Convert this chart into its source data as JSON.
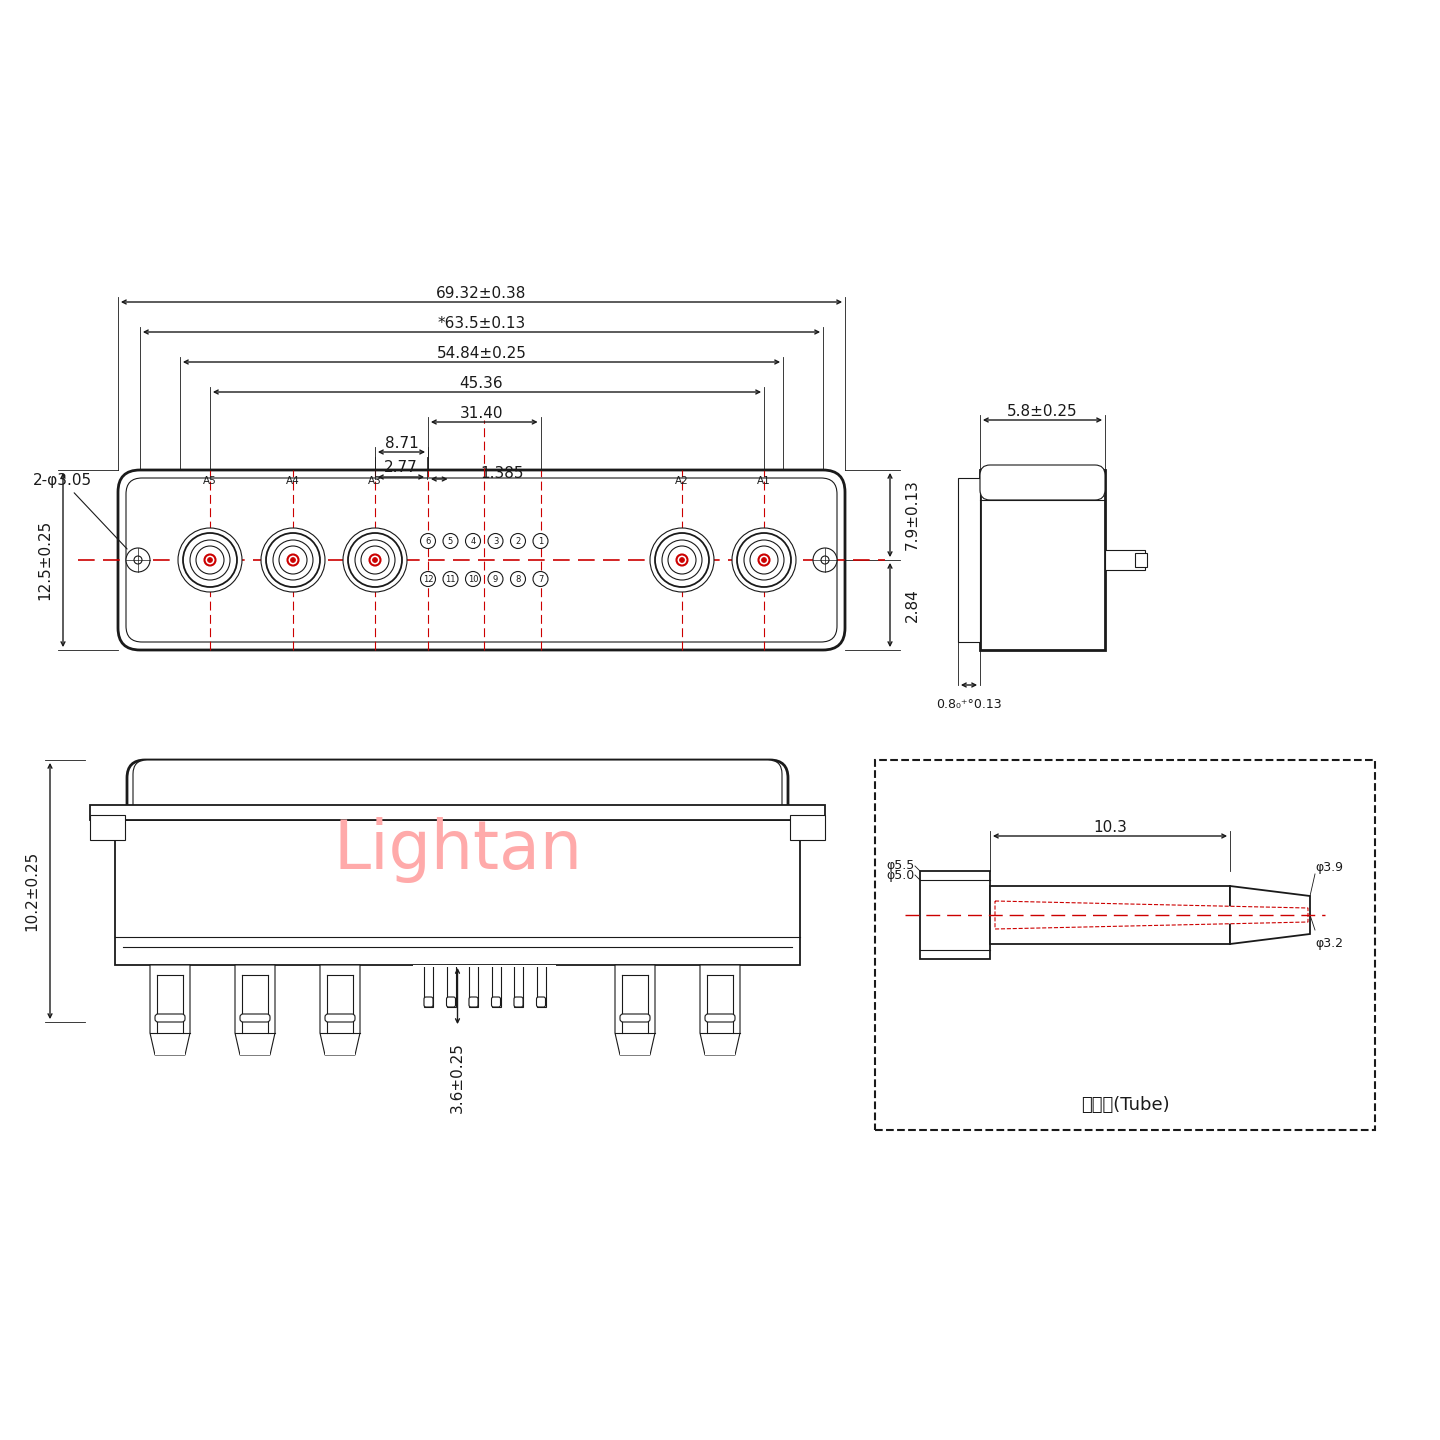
{
  "bg_color": "#ffffff",
  "lc": "#1a1a1a",
  "rc": "#cc0000",
  "wm_color": "#ffaaaa",
  "watermark": "Lightan",
  "dims": {
    "d6932": "69.32±0.38",
    "d635": "*63.5±0.13",
    "d5484": "54.84±0.25",
    "d4536": "45.36",
    "d3140": "31.40",
    "d871": "8.71",
    "d277": "2.77",
    "d1385": "1.385",
    "d79": "7.9±0.13",
    "d284": "2.84",
    "d125": "12.5±0.25",
    "phi305": "2-φ3.05",
    "d58": "5.8±0.25",
    "d08": "0.8₀⁺°0.13",
    "d102": "10.2±0.25",
    "d36": "3.6±0.25",
    "d103": "10.3",
    "phi39": "φ3.9",
    "phi32": "φ3.2",
    "phi50": "φ5.0",
    "phi55": "φ5.5",
    "tube_label": "屏蔽管(Tube)"
  },
  "coax_labels": [
    "A5",
    "A4",
    "A3",
    "A2",
    "A1"
  ],
  "pin_top": [
    "6",
    "5",
    "4",
    "3",
    "2",
    "1"
  ],
  "pin_bot": [
    "12",
    "11",
    "10",
    "9",
    "8",
    "7"
  ]
}
